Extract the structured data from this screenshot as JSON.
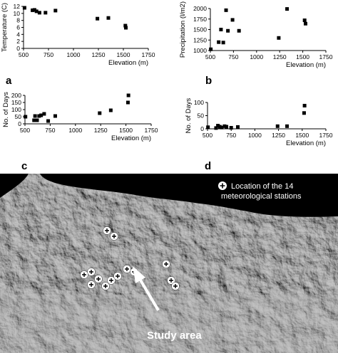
{
  "chart_data": [
    {
      "panel": "a",
      "type": "scatter",
      "xlabel": "Elevation (m)",
      "ylabel": "Temperature (C)",
      "xlim": [
        500,
        1750
      ],
      "ylim": [
        0,
        12
      ],
      "xticks": [
        500,
        750,
        1000,
        1250,
        1500,
        1750
      ],
      "yticks": [
        0,
        2,
        4,
        6,
        8,
        10,
        12
      ],
      "points": [
        [
          510,
          11.6
        ],
        [
          590,
          10.9
        ],
        [
          610,
          11.0
        ],
        [
          630,
          10.6
        ],
        [
          660,
          10.2
        ],
        [
          720,
          10.2
        ],
        [
          820,
          10.8
        ],
        [
          1240,
          8.5
        ],
        [
          1350,
          8.7
        ],
        [
          1520,
          6.5
        ],
        [
          1525,
          5.9
        ]
      ]
    },
    {
      "panel": "b",
      "type": "scatter",
      "xlabel": "Elevation (m)",
      "ylabel": "Precipitation (l/m2)",
      "xlim": [
        500,
        1750
      ],
      "ylim": [
        1000,
        2000
      ],
      "xticks": [
        500,
        750,
        1000,
        1250,
        1500,
        1750
      ],
      "yticks": [
        1000,
        1250,
        1500,
        1750,
        2000
      ],
      "points": [
        [
          505,
          1030
        ],
        [
          590,
          1200
        ],
        [
          615,
          1500
        ],
        [
          640,
          1190
        ],
        [
          670,
          1960
        ],
        [
          690,
          1470
        ],
        [
          740,
          1730
        ],
        [
          810,
          1470
        ],
        [
          1240,
          1300
        ],
        [
          1330,
          1990
        ],
        [
          1520,
          1720
        ],
        [
          1530,
          1640
        ]
      ]
    },
    {
      "panel": "c",
      "type": "scatter",
      "xlabel": "Elevation (m)",
      "ylabel": "No. of Days",
      "xlim": [
        500,
        1750
      ],
      "ylim": [
        0,
        200
      ],
      "xticks": [
        500,
        750,
        1000,
        1250,
        1500,
        1750
      ],
      "yticks": [
        0,
        50,
        100,
        150,
        200
      ],
      "points": [
        [
          505,
          50
        ],
        [
          590,
          25
        ],
        [
          600,
          55
        ],
        [
          620,
          25
        ],
        [
          640,
          55
        ],
        [
          660,
          60
        ],
        [
          690,
          70
        ],
        [
          730,
          20
        ],
        [
          800,
          55
        ],
        [
          1240,
          75
        ],
        [
          1350,
          95
        ],
        [
          1520,
          150
        ],
        [
          1525,
          200
        ]
      ]
    },
    {
      "panel": "d",
      "type": "scatter",
      "xlabel": "Elevation (m)",
      "ylabel": "No. of Days",
      "xlim": [
        500,
        1750
      ],
      "ylim": [
        0,
        100
      ],
      "xticks": [
        500,
        750,
        1000,
        1250,
        1500,
        1750
      ],
      "yticks": [
        0,
        50,
        100
      ],
      "points": [
        [
          505,
          6
        ],
        [
          590,
          3
        ],
        [
          610,
          12
        ],
        [
          630,
          8
        ],
        [
          650,
          5
        ],
        [
          680,
          10
        ],
        [
          700,
          8
        ],
        [
          750,
          4
        ],
        [
          820,
          7
        ],
        [
          1240,
          10
        ],
        [
          1340,
          10
        ],
        [
          1520,
          60
        ],
        [
          1525,
          88
        ]
      ]
    }
  ],
  "map": {
    "legend_text_1": "Location of the 14",
    "legend_text_2": "meteorological stations",
    "study_label": "Study area",
    "stations": 14
  }
}
